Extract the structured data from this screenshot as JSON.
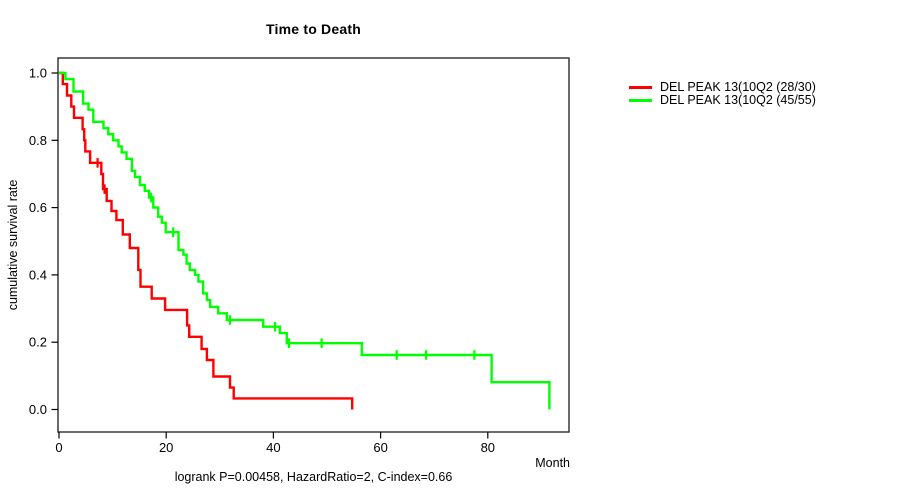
{
  "title": "Time to Death",
  "chart_data": {
    "type": "line",
    "subtype": "kaplan-meier-step-survival",
    "title": "Time to Death",
    "xlabel": "Month",
    "ylabel": "cumulative survival rate",
    "annotation": "logrank P=0.00458, HazardRatio=2, C-index=0.66",
    "xlim": [
      0,
      95
    ],
    "ylim": [
      0.0,
      1.0
    ],
    "x_ticks": [
      {
        "value": 0,
        "label": "0"
      },
      {
        "value": 20,
        "label": "20"
      },
      {
        "value": 40,
        "label": "40"
      },
      {
        "value": 60,
        "label": "60"
      },
      {
        "value": 80,
        "label": "80"
      }
    ],
    "y_ticks": [
      {
        "value": 0.0,
        "label": "0.0"
      },
      {
        "value": 0.2,
        "label": "0.2"
      },
      {
        "value": 0.4,
        "label": "0.4"
      },
      {
        "value": 0.6,
        "label": "0.6"
      },
      {
        "value": 0.8,
        "label": "0.8"
      },
      {
        "value": 1.0,
        "label": "1.0"
      }
    ],
    "grid": false,
    "legend_position": "right-outside",
    "series": [
      {
        "name": "DEL PEAK 13(10Q2 (28/30)",
        "color": "#ff0000",
        "steps": [
          [
            0,
            1.0
          ],
          [
            0.7,
            0.967
          ],
          [
            1.5,
            0.933
          ],
          [
            2.3,
            0.9
          ],
          [
            2.8,
            0.867
          ],
          [
            4.4,
            0.833
          ],
          [
            4.7,
            0.8
          ],
          [
            4.9,
            0.767
          ],
          [
            5.8,
            0.733
          ],
          [
            7.9,
            0.7
          ],
          [
            8.2,
            0.655
          ],
          [
            8.9,
            0.62
          ],
          [
            9.8,
            0.59
          ],
          [
            10.7,
            0.563
          ],
          [
            11.9,
            0.52
          ],
          [
            13.2,
            0.48
          ],
          [
            14.8,
            0.415
          ],
          [
            15.2,
            0.365
          ],
          [
            17.3,
            0.33
          ],
          [
            19.8,
            0.296
          ],
          [
            23.9,
            0.25
          ],
          [
            24.3,
            0.216
          ],
          [
            26.6,
            0.18
          ],
          [
            27.6,
            0.147
          ],
          [
            28.8,
            0.098
          ],
          [
            31.9,
            0.065
          ],
          [
            32.6,
            0.033
          ],
          [
            54.7,
            0.0
          ]
        ],
        "censors": [
          [
            7.2,
            0.733
          ],
          [
            8.5,
            0.655
          ]
        ]
      },
      {
        "name": "DEL PEAK 13(10Q2 (45/55)",
        "color": "#00ff00",
        "steps": [
          [
            0,
            1.0
          ],
          [
            1.2,
            0.982
          ],
          [
            2.7,
            0.945
          ],
          [
            4.5,
            0.909
          ],
          [
            5.5,
            0.891
          ],
          [
            6.4,
            0.855
          ],
          [
            8.3,
            0.836
          ],
          [
            9.2,
            0.818
          ],
          [
            10.1,
            0.8
          ],
          [
            11.1,
            0.782
          ],
          [
            11.7,
            0.764
          ],
          [
            12.6,
            0.745
          ],
          [
            13.6,
            0.709
          ],
          [
            14.2,
            0.691
          ],
          [
            15.1,
            0.667
          ],
          [
            16.0,
            0.65
          ],
          [
            16.8,
            0.63
          ],
          [
            17.6,
            0.6
          ],
          [
            18.5,
            0.573
          ],
          [
            19.2,
            0.555
          ],
          [
            19.9,
            0.527
          ],
          [
            22.3,
            0.474
          ],
          [
            23.2,
            0.46
          ],
          [
            23.8,
            0.434
          ],
          [
            24.4,
            0.415
          ],
          [
            25.4,
            0.4
          ],
          [
            26.0,
            0.38
          ],
          [
            26.9,
            0.345
          ],
          [
            27.6,
            0.325
          ],
          [
            28.2,
            0.305
          ],
          [
            29.7,
            0.286
          ],
          [
            31.3,
            0.266
          ],
          [
            38.1,
            0.246
          ],
          [
            41.2,
            0.227
          ],
          [
            42.5,
            0.197
          ],
          [
            56.5,
            0.162
          ],
          [
            80.7,
            0.081
          ],
          [
            91.5,
            0.0
          ]
        ],
        "censors": [
          [
            17.2,
            0.63
          ],
          [
            21.3,
            0.527
          ],
          [
            31.9,
            0.266
          ],
          [
            40.3,
            0.246
          ],
          [
            42.9,
            0.197
          ],
          [
            49.0,
            0.197
          ],
          [
            63.0,
            0.162
          ],
          [
            68.5,
            0.162
          ],
          [
            77.5,
            0.162
          ]
        ]
      }
    ]
  }
}
